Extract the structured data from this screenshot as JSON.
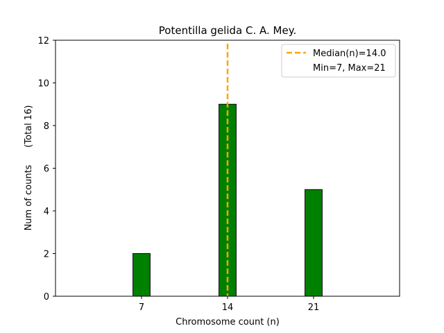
{
  "chart_data": {
    "type": "bar",
    "title": "Potentilla gelida C. A. Mey.",
    "xlabel": "Chromosome count (n)",
    "ylabel": "Num of counts      (Total 16)",
    "categories": [
      7,
      14,
      21
    ],
    "values": [
      2,
      9,
      5
    ],
    "bar_width": 1.4,
    "xlim": [
      0,
      28
    ],
    "ylim": [
      0,
      12
    ],
    "xticks": [
      7,
      14,
      21
    ],
    "yticks": [
      0,
      2,
      4,
      6,
      8,
      10,
      12
    ],
    "median": 14.0,
    "min": 7,
    "max": 21,
    "legend": {
      "position": "top-right",
      "entries": [
        "Median(n)=14.0",
        "Min=7, Max=21"
      ]
    },
    "colors": {
      "bar_fill": "#008000",
      "bar_edge": "#000000",
      "median_line": "#FFA500"
    }
  }
}
